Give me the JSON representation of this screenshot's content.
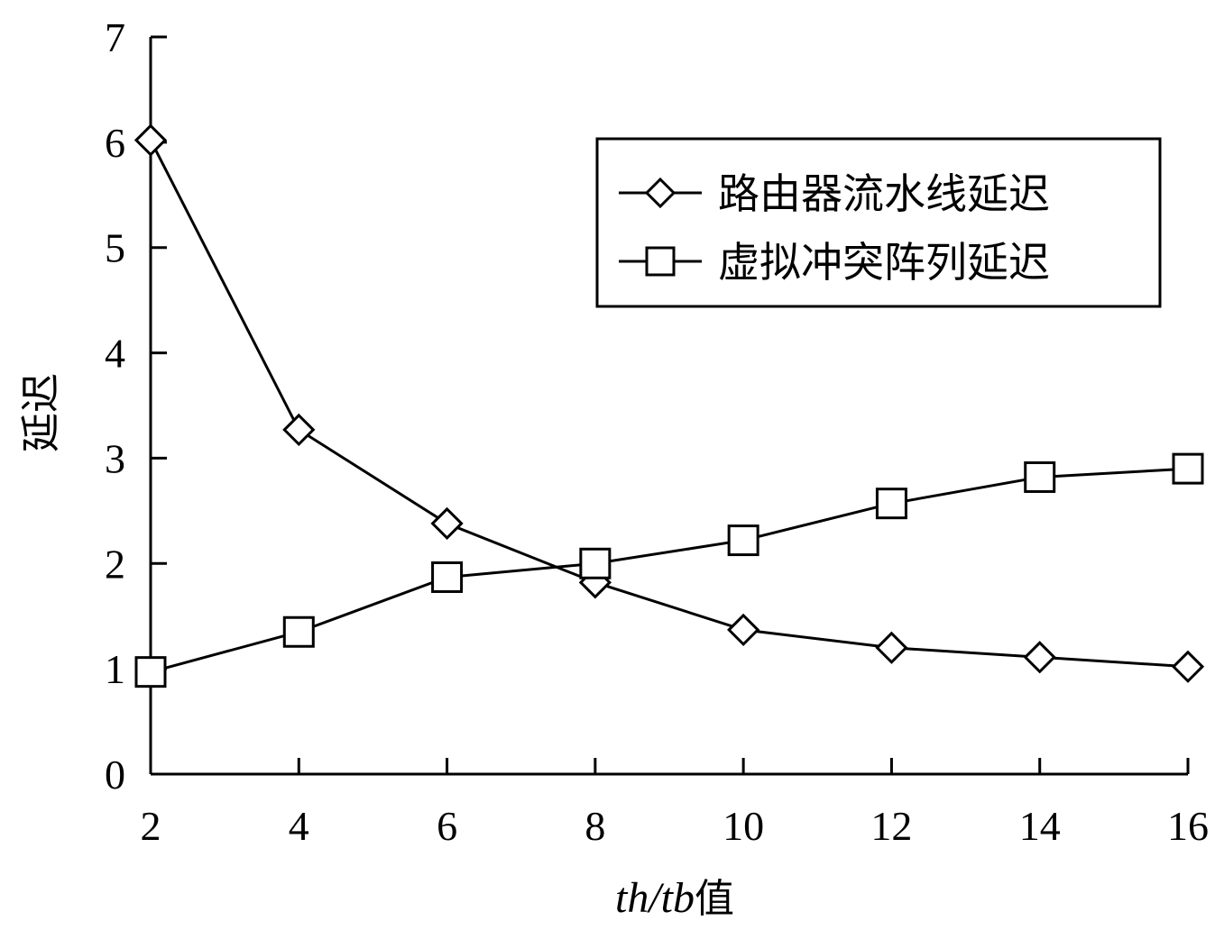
{
  "chart_data": {
    "type": "line",
    "x": [
      2,
      4,
      6,
      8,
      10,
      12,
      14,
      16
    ],
    "series": [
      {
        "name": "路由器流水线延迟",
        "marker": "diamond",
        "values": [
          6.02,
          3.27,
          2.38,
          1.82,
          1.37,
          1.2,
          1.11,
          1.02
        ]
      },
      {
        "name": "虚拟冲突阵列延迟",
        "marker": "square",
        "values": [
          0.97,
          1.35,
          1.87,
          2.0,
          2.22,
          2.57,
          2.82,
          2.9
        ]
      }
    ],
    "xlabel_italic": "th/tb",
    "xlabel_suffix": "值",
    "ylabel": "延迟",
    "xlim": [
      2,
      16
    ],
    "ylim": [
      0,
      7
    ],
    "xticks": [
      2,
      4,
      6,
      8,
      10,
      12,
      14,
      16
    ],
    "yticks": [
      0,
      1,
      2,
      3,
      4,
      5,
      6,
      7
    ],
    "grid": false,
    "legend_position": "top-right"
  }
}
